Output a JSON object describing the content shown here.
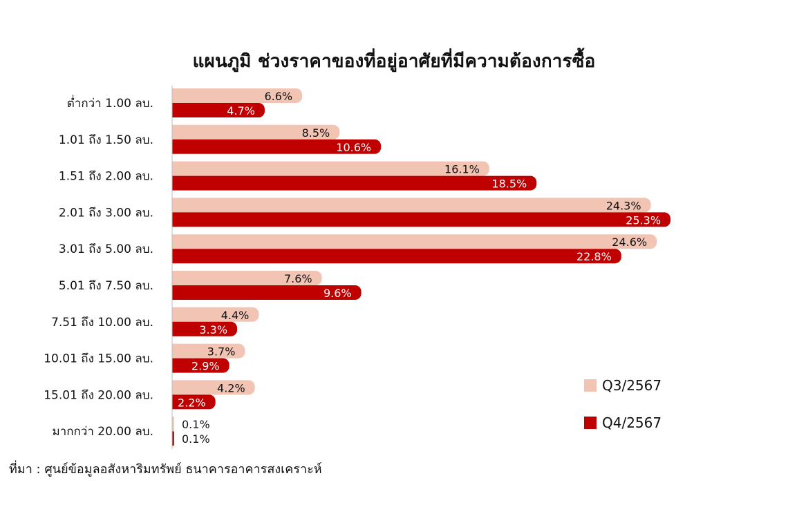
{
  "chart_data": {
    "type": "bar",
    "orientation": "horizontal",
    "title": "แผนภูมิ ช่วงราคาของที่อยู่อาศัยที่มีความต้องการซื้อ",
    "categories": [
      "ต่ำกว่า 1.00 ลบ.",
      "1.01 ถึง 1.50 ลบ.",
      "1.51 ถึง 2.00 ลบ.",
      "2.01 ถึง 3.00 ลบ.",
      "3.01 ถึง 5.00 ลบ.",
      "5.01 ถึง 7.50 ลบ.",
      "7.51 ถึง 10.00 ลบ.",
      "10.01 ถึง 15.00 ลบ.",
      "15.01 ถึง 20.00 ลบ.",
      "มากกว่า 20.00 ลบ."
    ],
    "series": [
      {
        "name": "Q3/2567",
        "color": "#f2c4b4",
        "label_color": "#111111",
        "values": [
          6.6,
          8.5,
          16.1,
          24.3,
          24.6,
          7.6,
          4.4,
          3.7,
          4.2,
          0.1
        ]
      },
      {
        "name": "Q4/2567",
        "color": "#c00000",
        "label_color": "#ffffff",
        "values": [
          4.7,
          10.6,
          18.5,
          25.3,
          22.8,
          9.6,
          3.3,
          2.9,
          2.2,
          0.1
        ]
      }
    ],
    "value_suffix": "%",
    "xlim": [
      0,
      26
    ],
    "legend_position": "right",
    "grid": false,
    "source": "ที่มา : ศูนย์ข้อมูลอสังหาริมทรัพย์ ธนาคารอาคารสงเคราะห์"
  }
}
